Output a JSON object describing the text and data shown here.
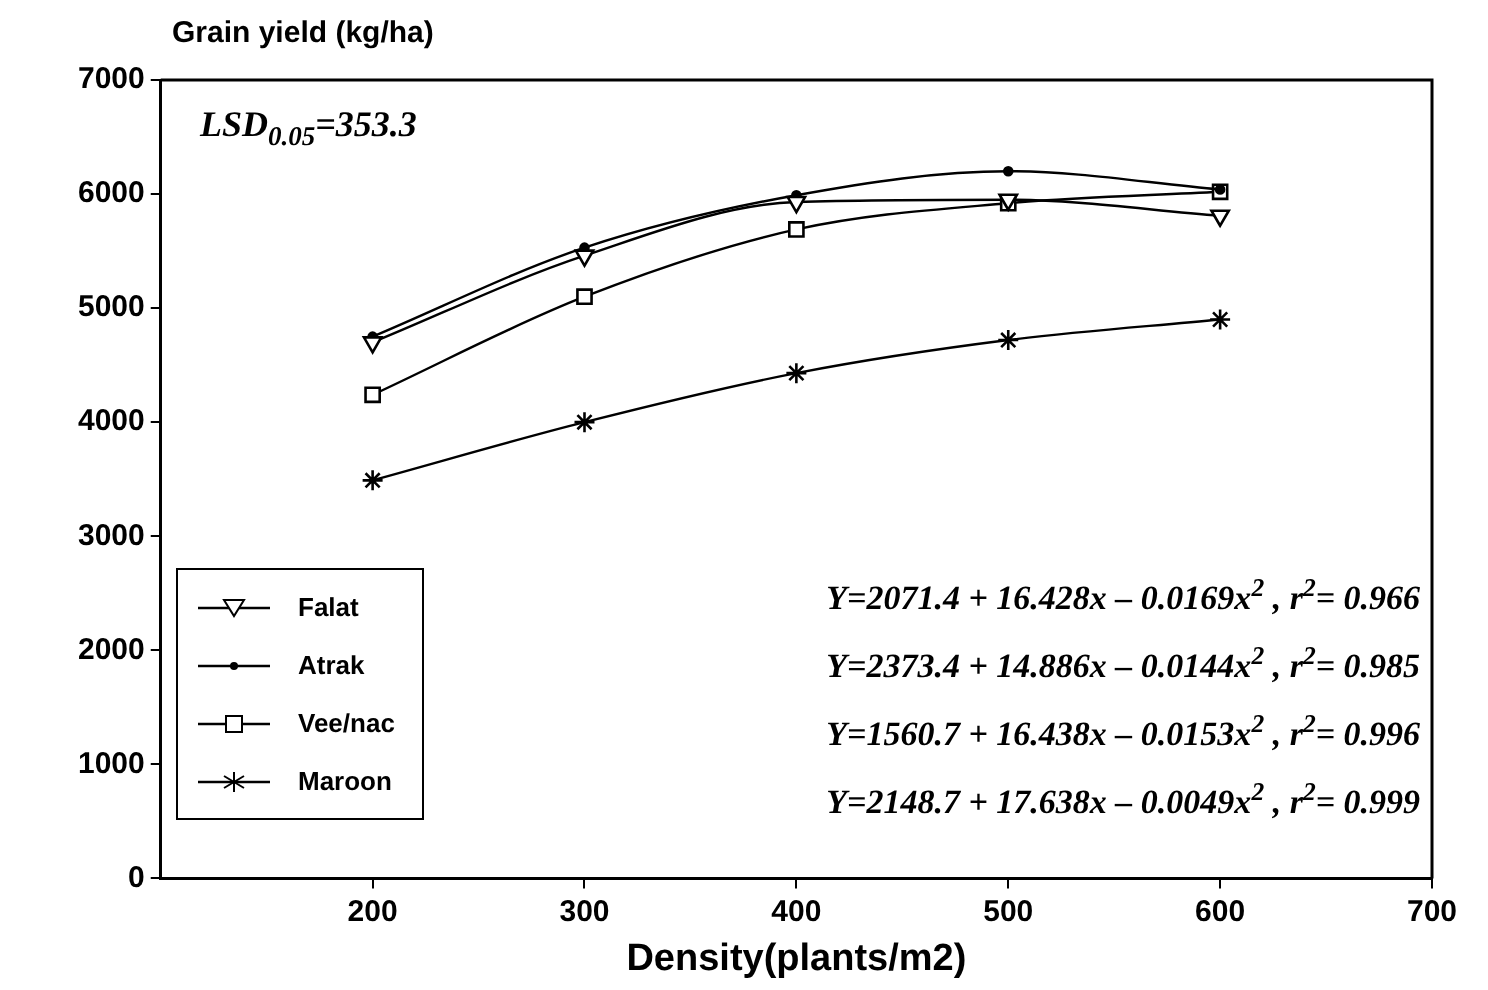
{
  "chart_data": {
    "type": "line",
    "ylabel": "Grain yield (kg/ha)",
    "xlabel": "Density(plants/m2)",
    "x": [
      200,
      300,
      400,
      500,
      600
    ],
    "series": [
      {
        "name": "Falat",
        "color": "#000000",
        "marker": "triangle",
        "values": [
          4700,
          5460,
          5930,
          5950,
          5810
        ]
      },
      {
        "name": "Atrak",
        "color": "#000000",
        "marker": "circle",
        "values": [
          4750,
          5530,
          5990,
          6200,
          6040
        ]
      },
      {
        "name": "Vee/nac",
        "color": "#000000",
        "marker": "square",
        "values": [
          4240,
          5100,
          5690,
          5920,
          6020
        ]
      },
      {
        "name": "Maroon",
        "color": "#000000",
        "marker": "cross",
        "values": [
          3490,
          4000,
          4430,
          4720,
          4900
        ]
      }
    ],
    "xlim": [
      100,
      700
    ],
    "xticks": [
      200,
      300,
      400,
      500,
      600,
      700
    ],
    "ylim": [
      0,
      7000
    ],
    "yticks": [
      0,
      1000,
      2000,
      3000,
      4000,
      5000,
      6000,
      7000
    ],
    "grid": false,
    "legend": "bottom left",
    "line_style": "solid",
    "annotations": [
      "LSD$_{0.05}$=353.3",
      "Y=2071.4 + 16.428x – 0.0169x$^{2}$  ,  r$^{2}$= 0.966",
      "Y=2373.4 + 14.886x – 0.0144x$^{2}$  ,  r$^{2}$= 0.985",
      "Y=1560.7 + 16.438x – 0.0153x$^{2}$  ,  r$^{2}$= 0.996",
      "Y=2148.7 + 17.638x – 0.0049x$^{2}$  ,  r$^{2}$= 0.999"
    ]
  }
}
